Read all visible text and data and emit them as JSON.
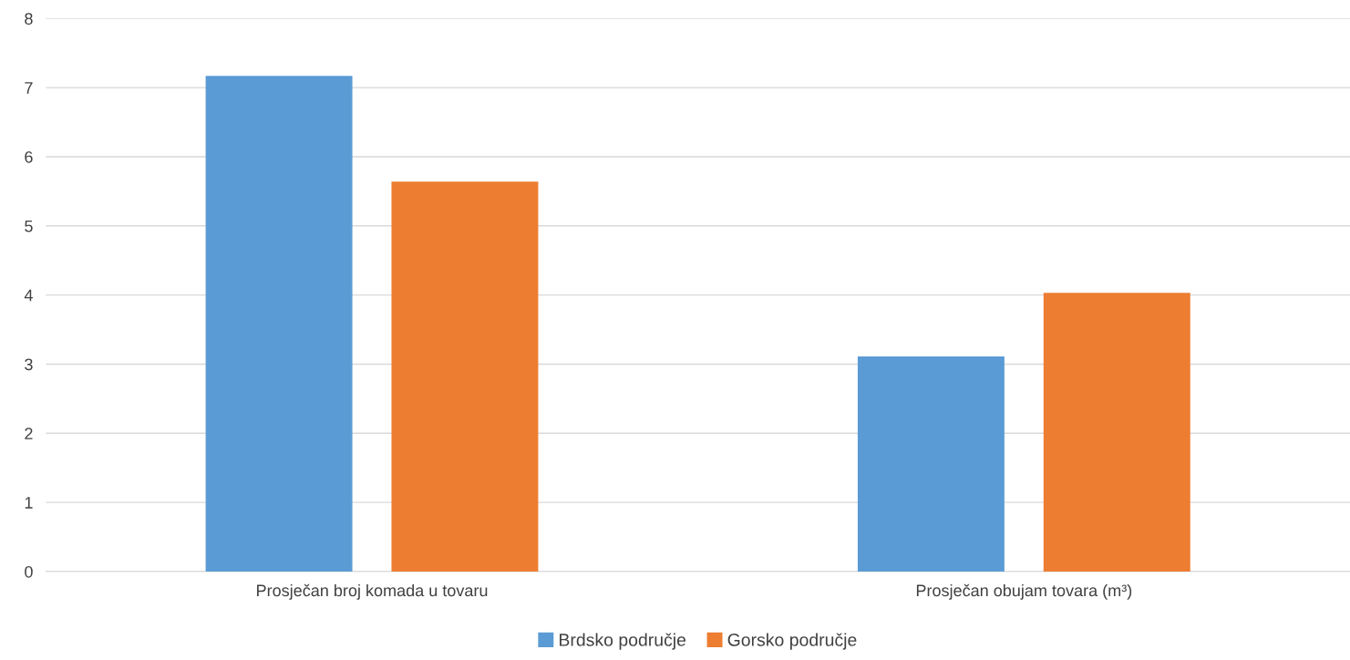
{
  "chart_data": {
    "type": "bar",
    "categories": [
      "Prosječan broj komada u tovaru",
      "Prosječan obujam tovara (m³)"
    ],
    "series": [
      {
        "name": "Brdsko područje",
        "color": "#5b9bd5",
        "values": [
          7.17,
          3.11
        ]
      },
      {
        "name": "Gorsko područje",
        "color": "#ed7d31",
        "values": [
          5.64,
          4.03
        ]
      }
    ],
    "ylim": [
      0,
      8
    ],
    "yticks": [
      0,
      1,
      2,
      3,
      4,
      5,
      6,
      7,
      8
    ],
    "grid": "y",
    "legend": "bottom"
  }
}
